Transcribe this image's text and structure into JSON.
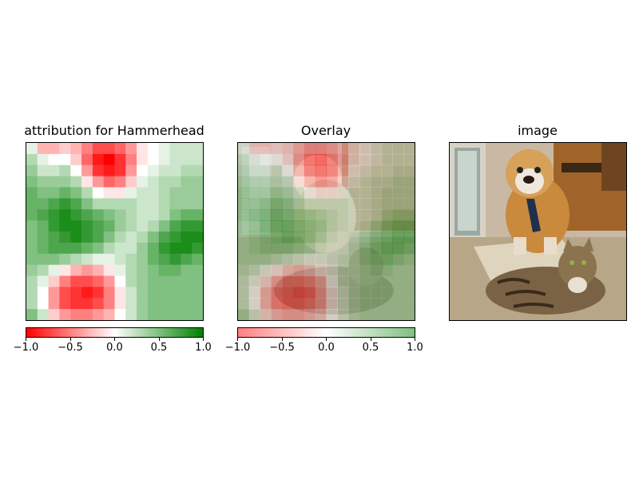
{
  "chart_data": [
    {
      "type": "heatmap",
      "title": "attribution for Hammerhead",
      "grid_size": [
        16,
        16
      ],
      "colorbar": {
        "range": [
          -1.0,
          1.0
        ],
        "ticks": [
          "−1.0",
          "−0.5",
          "0.0",
          "0.5",
          "1.0"
        ],
        "colors": [
          "#ff0000",
          "#ffffff",
          "#008000"
        ]
      },
      "values": [
        [
          0.1,
          -0.3,
          -0.3,
          -0.2,
          -0.3,
          -0.5,
          -0.7,
          -0.7,
          -0.6,
          -0.4,
          -0.1,
          0.0,
          0.1,
          0.2,
          0.2,
          0.2
        ],
        [
          0.3,
          0.1,
          0.0,
          0.0,
          -0.2,
          -0.6,
          -0.9,
          -1.0,
          -0.8,
          -0.5,
          -0.1,
          0.0,
          0.1,
          0.2,
          0.2,
          0.2
        ],
        [
          0.4,
          0.2,
          0.2,
          0.3,
          0.0,
          -0.4,
          -0.8,
          -0.9,
          -0.8,
          -0.4,
          0.0,
          0.1,
          0.2,
          0.2,
          0.3,
          0.3
        ],
        [
          0.5,
          0.4,
          0.4,
          0.4,
          0.3,
          -0.1,
          -0.4,
          -0.6,
          -0.5,
          -0.2,
          0.1,
          0.2,
          0.3,
          0.3,
          0.4,
          0.4
        ],
        [
          0.6,
          0.5,
          0.5,
          0.6,
          0.5,
          0.3,
          0.0,
          -0.1,
          -0.1,
          0.1,
          0.2,
          0.2,
          0.3,
          0.4,
          0.4,
          0.4
        ],
        [
          0.6,
          0.6,
          0.7,
          0.8,
          0.7,
          0.5,
          0.3,
          0.3,
          0.3,
          0.3,
          0.2,
          0.2,
          0.3,
          0.4,
          0.4,
          0.4
        ],
        [
          0.6,
          0.7,
          0.8,
          0.9,
          0.8,
          0.7,
          0.6,
          0.5,
          0.4,
          0.3,
          0.2,
          0.2,
          0.3,
          0.5,
          0.6,
          0.6
        ],
        [
          0.5,
          0.6,
          0.8,
          0.9,
          0.9,
          0.8,
          0.7,
          0.6,
          0.4,
          0.3,
          0.2,
          0.3,
          0.5,
          0.7,
          0.8,
          0.8
        ],
        [
          0.5,
          0.6,
          0.7,
          0.8,
          0.9,
          0.8,
          0.7,
          0.5,
          0.3,
          0.2,
          0.3,
          0.5,
          0.7,
          0.8,
          0.9,
          0.9
        ],
        [
          0.5,
          0.6,
          0.7,
          0.7,
          0.7,
          0.6,
          0.5,
          0.3,
          0.2,
          0.2,
          0.4,
          0.6,
          0.8,
          0.9,
          0.9,
          0.8
        ],
        [
          0.5,
          0.5,
          0.5,
          0.4,
          0.3,
          0.2,
          0.1,
          0.1,
          0.2,
          0.3,
          0.4,
          0.6,
          0.7,
          0.8,
          0.7,
          0.6
        ],
        [
          0.4,
          0.3,
          0.1,
          -0.1,
          -0.3,
          -0.4,
          -0.3,
          -0.1,
          0.1,
          0.3,
          0.4,
          0.5,
          0.6,
          0.6,
          0.5,
          0.5
        ],
        [
          0.3,
          0.1,
          -0.2,
          -0.5,
          -0.7,
          -0.7,
          -0.6,
          -0.4,
          0.0,
          0.3,
          0.4,
          0.5,
          0.5,
          0.5,
          0.5,
          0.5
        ],
        [
          0.3,
          0.0,
          -0.4,
          -0.7,
          -0.8,
          -0.9,
          -0.8,
          -0.5,
          -0.1,
          0.2,
          0.4,
          0.5,
          0.5,
          0.5,
          0.5,
          0.5
        ],
        [
          0.3,
          0.0,
          -0.4,
          -0.7,
          -0.8,
          -0.8,
          -0.7,
          -0.5,
          -0.1,
          0.2,
          0.4,
          0.5,
          0.5,
          0.5,
          0.5,
          0.5
        ],
        [
          0.5,
          0.2,
          -0.2,
          -0.4,
          -0.5,
          -0.5,
          -0.4,
          -0.3,
          0.0,
          0.2,
          0.4,
          0.5,
          0.5,
          0.5,
          0.5,
          0.5
        ]
      ]
    },
    {
      "type": "heatmap",
      "title": "Overlay",
      "note_image": "attribution heatmap blended over photo of a bulldog and a tabby cat",
      "colorbar": {
        "range": [
          -1.0,
          1.0
        ],
        "ticks": [
          "−1.0",
          "−0.5",
          "0.0",
          "0.5",
          "1.0"
        ],
        "colors": [
          "#ff8080",
          "#ffffff",
          "#80c080"
        ]
      }
    },
    {
      "type": "image",
      "title": "image",
      "subjects": [
        "bulldog",
        "tabby cat"
      ]
    }
  ]
}
